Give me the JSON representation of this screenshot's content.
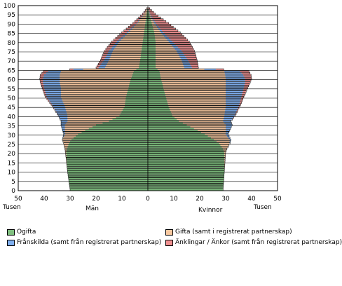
{
  "chart_data": {
    "type": "population-pyramid",
    "title": "",
    "left_side_label": "Män",
    "right_side_label": "Kvinnor",
    "unit_label_left": "Tusen",
    "unit_label_right": "Tusen",
    "x_ticks_left": [
      50,
      40,
      30,
      20,
      10,
      0
    ],
    "x_ticks_right": [
      10,
      20,
      30,
      40,
      50
    ],
    "xlim": [
      -50,
      50
    ],
    "ylim": [
      0,
      100
    ],
    "y_ticks": [
      0,
      5,
      10,
      15,
      20,
      25,
      30,
      35,
      40,
      45,
      50,
      55,
      60,
      65,
      70,
      75,
      80,
      85,
      90,
      95,
      100
    ],
    "grid": "horizontal",
    "series": [
      {
        "name": "Ogifta",
        "color": "#80c080"
      },
      {
        "name": "Gifta (samt i registrerat partnerskap)",
        "color": "#f8c8a0"
      },
      {
        "name": "Frånskilda (samt från registrerat partnerskap)",
        "color": "#80b0f0"
      },
      {
        "name": "Änklingar / Änkor (samt från registrerat partnerskap)",
        "color": "#f09090"
      }
    ],
    "men": {
      "age_anchors": [
        0,
        10,
        20,
        22,
        25,
        27,
        30,
        35,
        37,
        40,
        45,
        50,
        55,
        58,
        60,
        62,
        64,
        66,
        70,
        75,
        80,
        85,
        90,
        95,
        99
      ],
      "ogifta_anchors": [
        30,
        31,
        31.5,
        31.2,
        30.5,
        29.5,
        27,
        20,
        15,
        11,
        9,
        8.5,
        7.5,
        7,
        6.5,
        6,
        5.5,
        3.5,
        3,
        2.5,
        2,
        1.5,
        1,
        0.5,
        0
      ],
      "gifta_anchors": [
        0,
        0,
        0.3,
        0.8,
        2,
        3.5,
        5,
        12,
        16,
        20,
        23,
        25,
        26,
        27,
        27.5,
        28,
        28,
        13,
        12,
        11,
        9,
        6,
        3,
        1,
        0
      ],
      "franskilda_anchors": [
        0,
        0,
        0,
        0,
        0,
        0,
        0.5,
        1.5,
        2.5,
        3.5,
        4.5,
        5.5,
        6.5,
        6.5,
        6.5,
        6,
        5,
        2.5,
        2,
        1.5,
        1,
        0.6,
        0.3,
        0.1,
        0
      ],
      "anklingar_anchors": [
        0,
        0,
        0,
        0,
        0,
        0,
        0,
        0,
        0,
        0.1,
        0.3,
        0.5,
        0.8,
        1,
        1.2,
        1.5,
        1.8,
        1,
        1.3,
        1.8,
        2,
        2,
        1.5,
        0.5,
        0
      ]
    },
    "women": {
      "age_anchors": [
        0,
        10,
        20,
        22,
        25,
        27,
        30,
        35,
        37,
        40,
        45,
        50,
        55,
        58,
        60,
        62,
        64,
        66,
        70,
        75,
        80,
        85,
        90,
        95,
        99
      ],
      "ogifta_anchors": [
        29,
        29.5,
        29.5,
        29,
        27.5,
        25.5,
        22,
        15,
        12,
        9.5,
        8,
        7,
        6,
        5.5,
        5,
        4.8,
        4.5,
        3,
        3,
        3,
        3,
        2.5,
        1.5,
        0.5,
        0
      ],
      "gifta_anchors": [
        0,
        0,
        0.5,
        1.5,
        4,
        6,
        8,
        15,
        17,
        20,
        22,
        23,
        24,
        24.5,
        25,
        25,
        25,
        11,
        10,
        8,
        5,
        2.5,
        1,
        0.2,
        0
      ],
      "franskilda_anchors": [
        0,
        0,
        0,
        0,
        0.2,
        0.5,
        1,
        2.5,
        3,
        4,
        5,
        6,
        7,
        7.5,
        7.5,
        7,
        6,
        3,
        2.5,
        2,
        1.5,
        1,
        0.5,
        0.2,
        0
      ],
      "anklingar_anchors": [
        0,
        0,
        0,
        0,
        0,
        0,
        0,
        0,
        0.1,
        0.2,
        0.5,
        1,
        1.5,
        2,
        2.5,
        3,
        3.5,
        2.5,
        3.5,
        5,
        6.5,
        6.5,
        5,
        2,
        0
      ]
    }
  }
}
